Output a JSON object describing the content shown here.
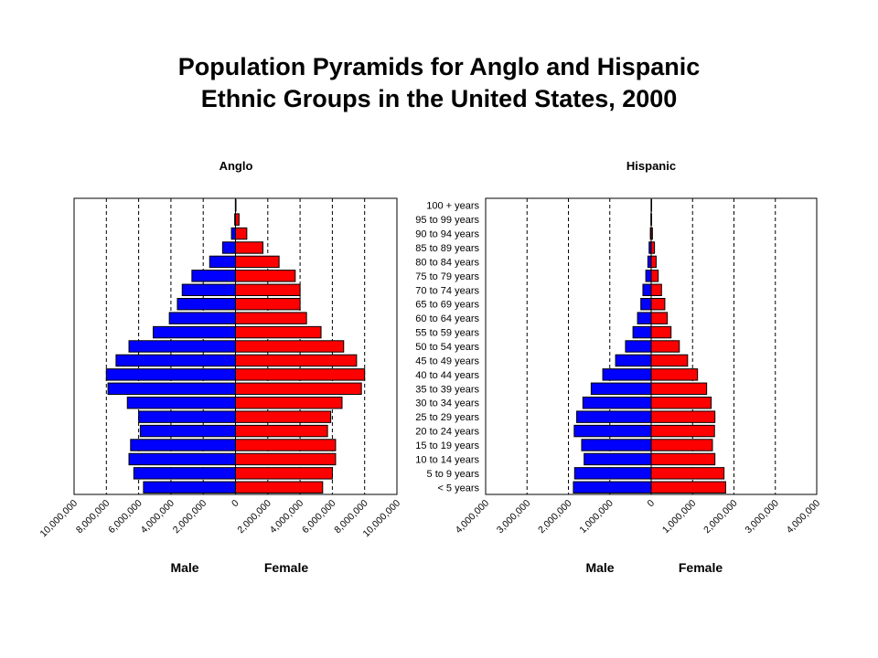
{
  "title_line1": "Population Pyramids for Anglo and Hispanic",
  "title_line2": "Ethnic Groups in the United States, 2000",
  "chart_data": [
    {
      "type": "bar",
      "title": "Anglo",
      "categories": [
        "< 5 years",
        "5 to 9 years",
        "10 to 14 years",
        "15 to 19 years",
        "20 to 24 years",
        "25 to 29 years",
        "30 to 34 years",
        "35 to 39 years",
        "40 to 44 years",
        "45 to 49 years",
        "50 to 54 years",
        "55 to 59 years",
        "60 to 64 years",
        "65 to 69 years",
        "70 to 74 years",
        "75 to 79 years",
        "80 to 84 years",
        "85 to 89 years",
        "90 to 94 years",
        "95 to 99 years",
        "100 + years"
      ],
      "xlim": [
        -10000000,
        10000000
      ],
      "tick_values": [
        -10000000,
        -8000000,
        -6000000,
        -4000000,
        -2000000,
        0,
        2000000,
        4000000,
        6000000,
        8000000,
        10000000
      ],
      "tick_labels": [
        "10,000,000",
        "8,000,000",
        "6,000,000",
        "4,000,000",
        "2,000,000",
        "0",
        "2,000,000",
        "4,000,000",
        "6,000,000",
        "8,000,000",
        "10,000,000"
      ],
      "gridlines": [
        -8000000,
        -6000000,
        -4000000,
        -2000000,
        2000000,
        4000000,
        6000000,
        8000000
      ],
      "series": [
        {
          "name": "Male",
          "color": "#0000ff",
          "values": [
            5700000,
            6300000,
            6600000,
            6500000,
            5900000,
            6000000,
            6700000,
            7900000,
            8000000,
            7400000,
            6600000,
            5100000,
            4100000,
            3600000,
            3300000,
            2700000,
            1600000,
            800000,
            250000,
            50000,
            10000
          ]
        },
        {
          "name": "Female",
          "color": "#ff0000",
          "values": [
            5400000,
            6000000,
            6200000,
            6200000,
            5700000,
            5900000,
            6600000,
            7800000,
            8000000,
            7500000,
            6700000,
            5300000,
            4400000,
            4000000,
            4000000,
            3700000,
            2700000,
            1700000,
            700000,
            220000,
            30000
          ]
        }
      ]
    },
    {
      "type": "bar",
      "title": "Hispanic",
      "categories": [
        "< 5 years",
        "5 to 9 years",
        "10 to 14 years",
        "15 to 19 years",
        "20 to 24 years",
        "25 to 29 years",
        "30 to 34 years",
        "35 to 39 years",
        "40 to 44 years",
        "45 to 49 years",
        "50 to 54 years",
        "55 to 59 years",
        "60 to 64 years",
        "65 to 69 years",
        "70 to 74 years",
        "75 to 79 years",
        "80 to 84 years",
        "85 to 89 years",
        "90 to 94 years",
        "95 to 99 years",
        "100 + years"
      ],
      "xlim": [
        -4000000,
        4000000
      ],
      "tick_values": [
        -4000000,
        -3000000,
        -2000000,
        -1000000,
        0,
        1000000,
        2000000,
        3000000,
        4000000
      ],
      "tick_labels": [
        "4,000,000",
        "3,000,000",
        "2,000,000",
        "1,000,000",
        "0",
        "1,000,000",
        "2,000,000",
        "3,000,000",
        "4,000,000"
      ],
      "gridlines": [
        -3000000,
        -2000000,
        -1000000,
        1000000,
        2000000,
        3000000
      ],
      "series": [
        {
          "name": "Male",
          "color": "#0000ff",
          "values": [
            1880000,
            1850000,
            1620000,
            1680000,
            1860000,
            1800000,
            1650000,
            1450000,
            1170000,
            860000,
            620000,
            440000,
            330000,
            250000,
            200000,
            130000,
            80000,
            50000,
            20000,
            7000,
            2000
          ]
        },
        {
          "name": "Female",
          "color": "#ff0000",
          "values": [
            1800000,
            1760000,
            1540000,
            1480000,
            1530000,
            1540000,
            1450000,
            1340000,
            1120000,
            880000,
            680000,
            480000,
            390000,
            330000,
            250000,
            170000,
            120000,
            80000,
            30000,
            10000,
            3000
          ]
        }
      ]
    }
  ],
  "left_panel": {
    "title": "Anglo",
    "male_label": "Male",
    "female_label": "Female"
  },
  "right_panel": {
    "title": "Hispanic",
    "male_label": "Male",
    "female_label": "Female"
  }
}
